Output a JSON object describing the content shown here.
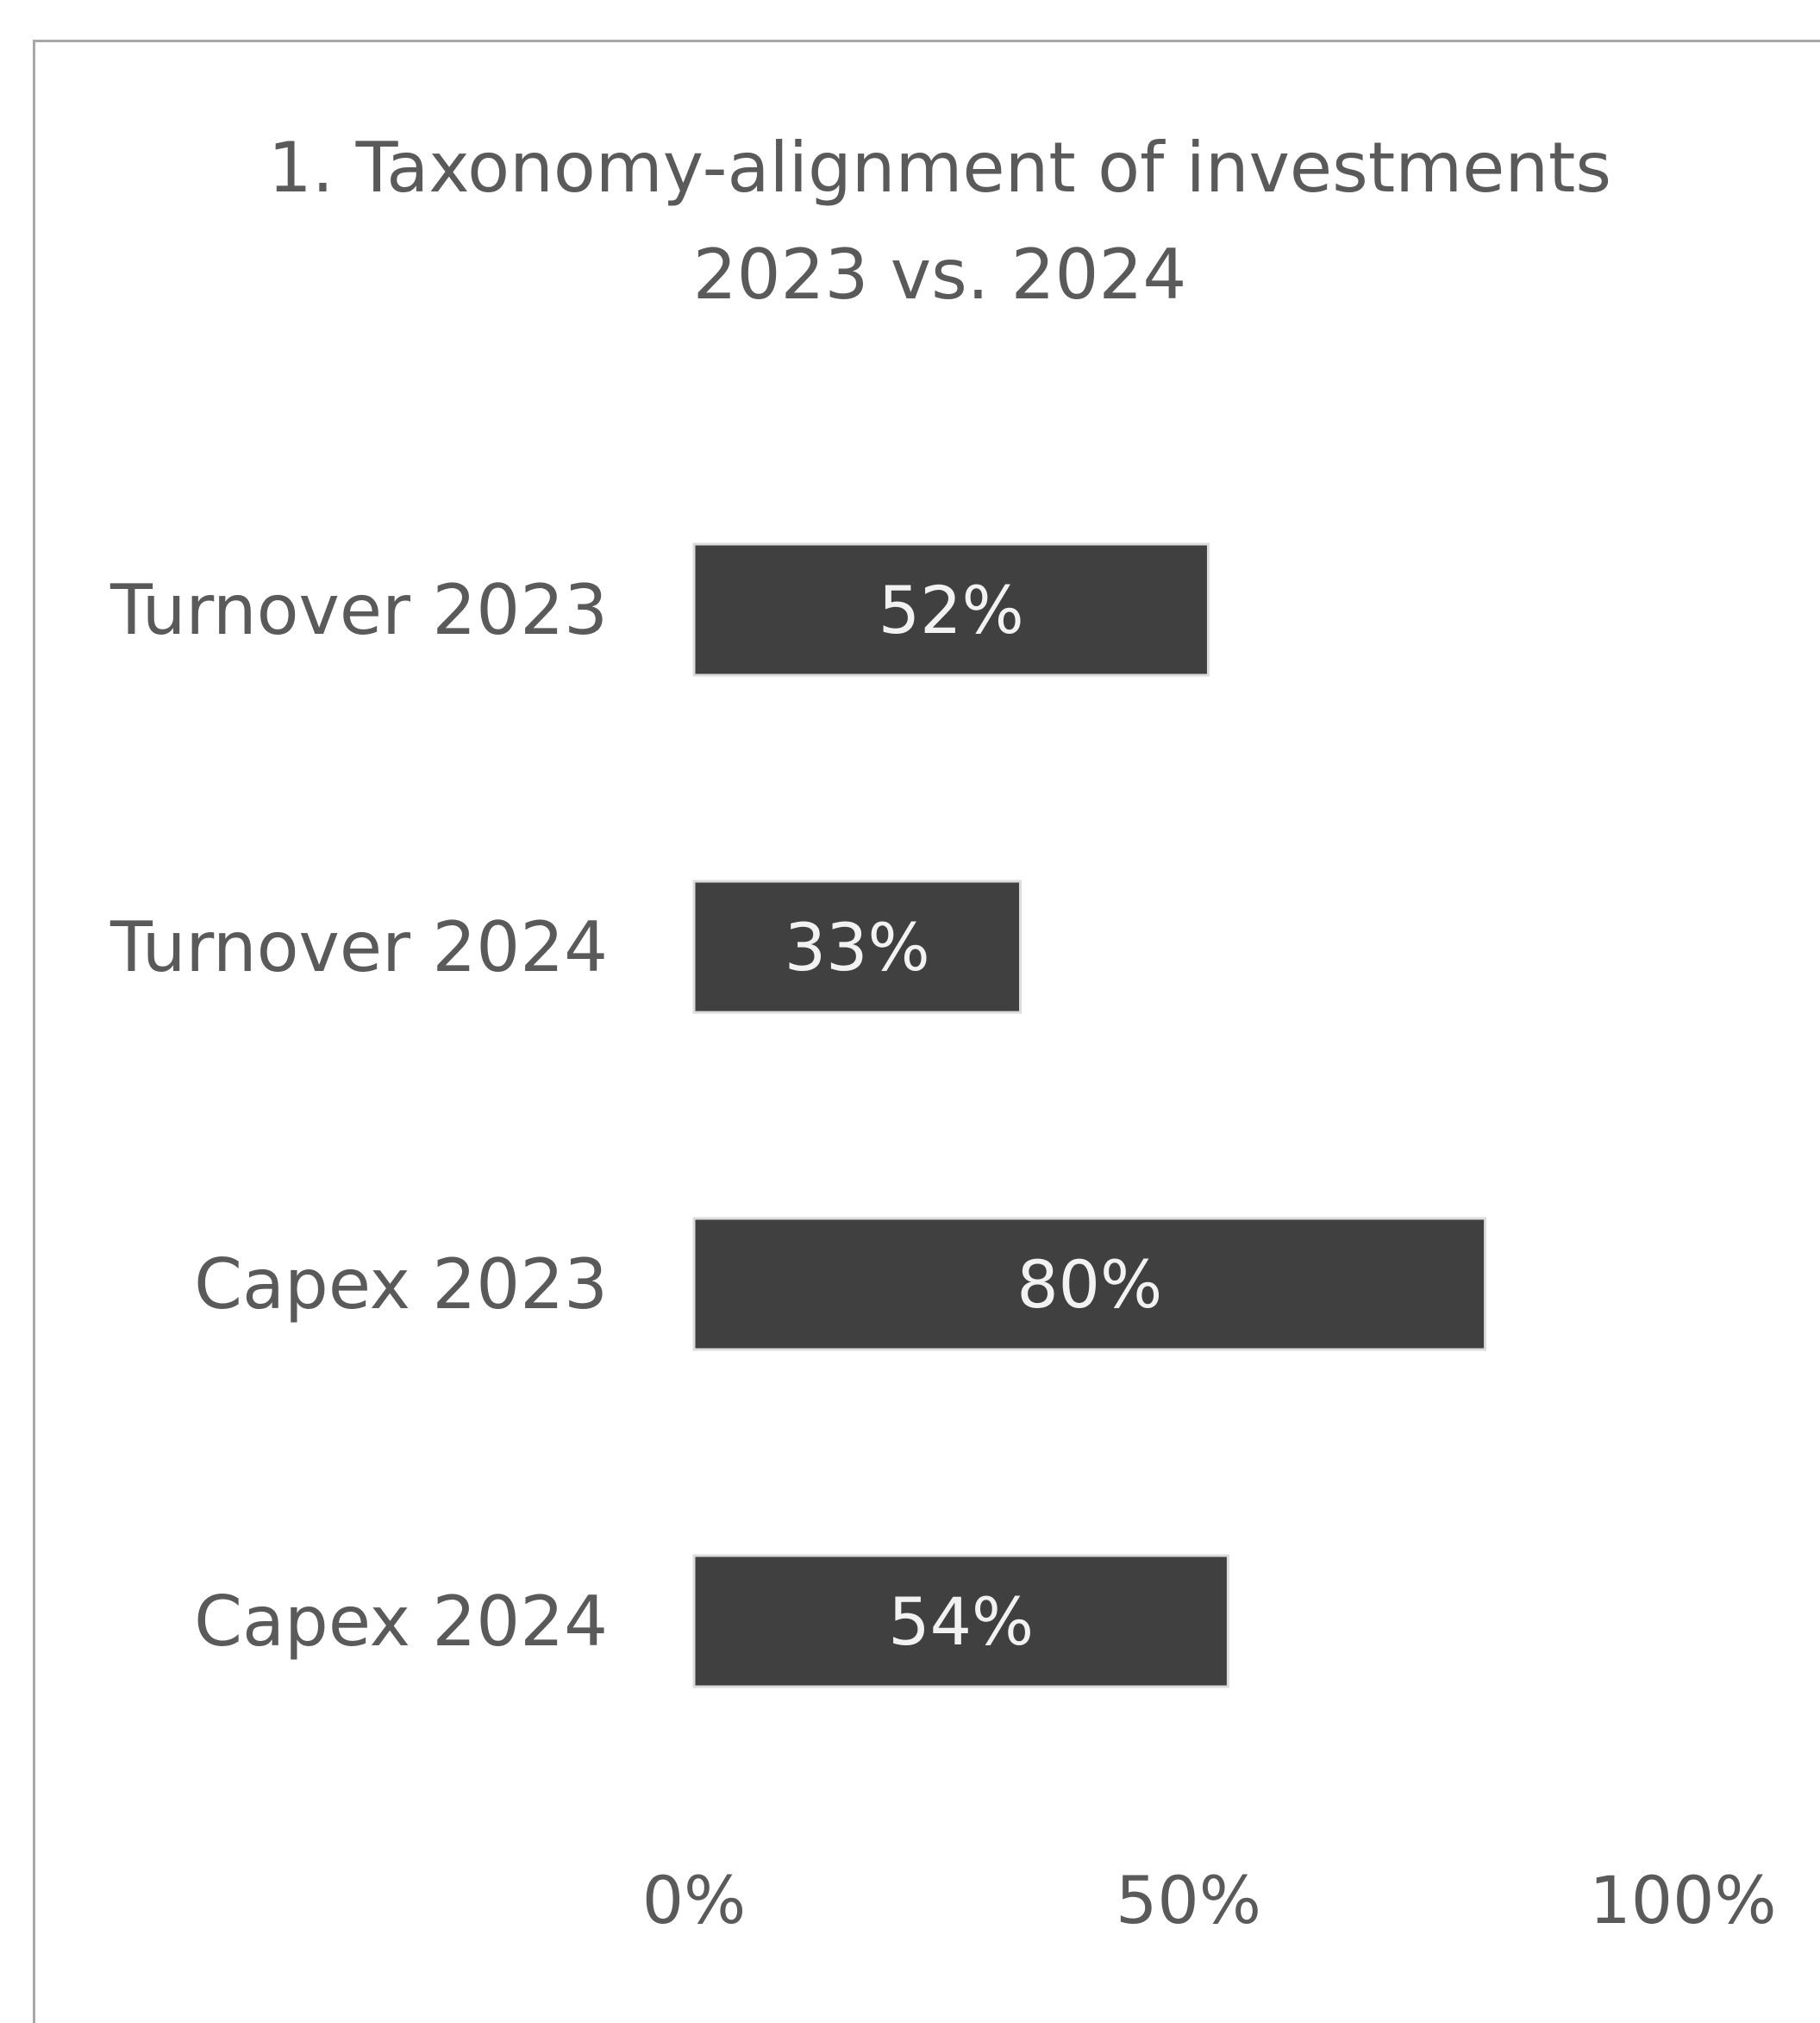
{
  "chart_data": {
    "type": "bar",
    "orientation": "horizontal",
    "title": [
      "1. Taxonomy-alignment of investments",
      "2023 vs. 2024"
    ],
    "categories": [
      "Turnover 2023",
      "Turnover 2024",
      "Capex 2023",
      "Capex 2024"
    ],
    "values": [
      52,
      33,
      80,
      54
    ],
    "data_labels": [
      "52%",
      "33%",
      "80%",
      "54%"
    ],
    "x_ticks": [
      "0%",
      "50%",
      "100%"
    ],
    "xlim": [
      0,
      100
    ],
    "grid": false,
    "legend": "none",
    "colors": {
      "bar": "#404040",
      "bar_label": "#f2f2f2",
      "text": "#5a5a5a",
      "frame": "#a8a8a8"
    }
  }
}
